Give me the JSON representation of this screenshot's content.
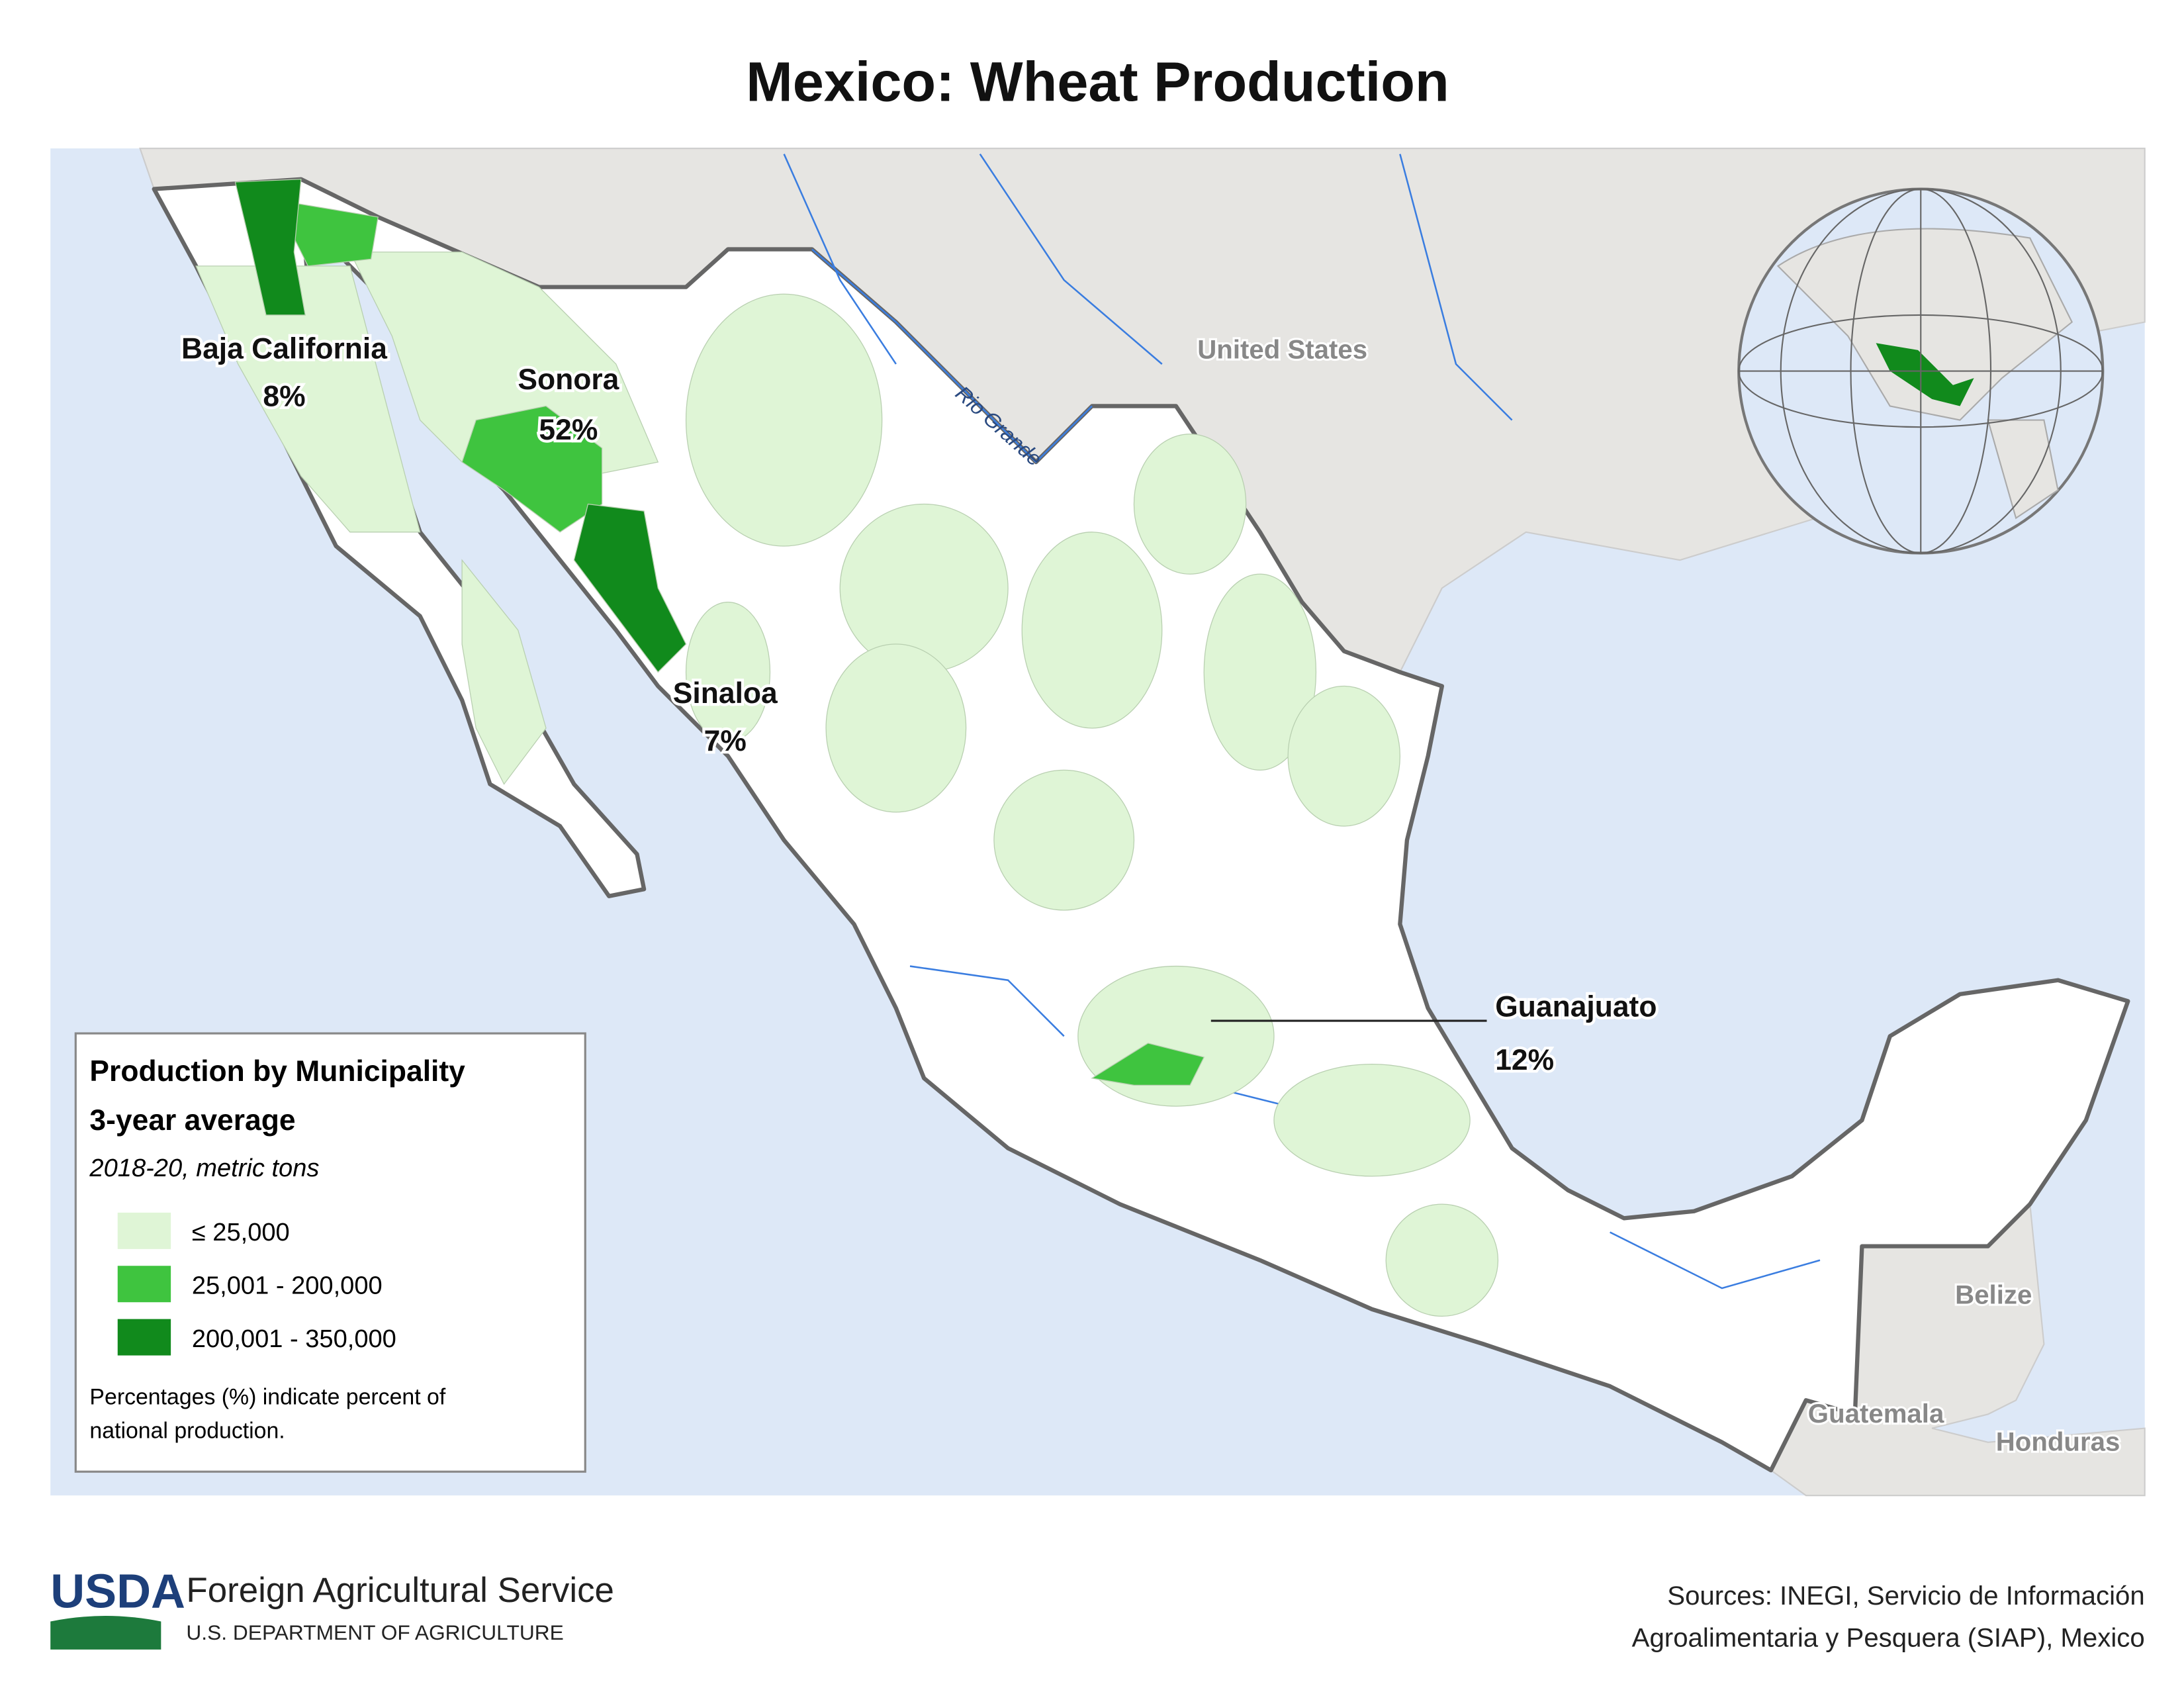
{
  "header": {
    "title": "Mexico: Wheat Production"
  },
  "map": {
    "countries": [
      "United States",
      "Belize",
      "Guatemala",
      "Honduras"
    ],
    "river": "Rio Grande",
    "regions": [
      {
        "name": "Baja California",
        "share": "8%"
      },
      {
        "name": "Sonora",
        "share": "52%"
      },
      {
        "name": "Sinaloa",
        "share": "7%"
      },
      {
        "name": "Guanajuato",
        "share": "12%"
      }
    ]
  },
  "legend": {
    "title": "Production by Municipality",
    "subtitle": "3-year average",
    "note": "2018-20, metric tons",
    "classes": [
      {
        "label": "≤ 25,000",
        "color": "#dff5d6"
      },
      {
        "label": "25,001 - 200,000",
        "color": "#3fc43f"
      },
      {
        "label": "200,001 - 350,000",
        "color": "#118a1c"
      }
    ],
    "footnote": [
      "Percentages (%) indicate percent of",
      "national production."
    ]
  },
  "footer": {
    "agency": "USDA",
    "service": "Foreign Agricultural Service",
    "department": "U.S. DEPARTMENT OF AGRICULTURE",
    "sources": [
      "Sources: INEGI, Servicio de Información",
      "Agroalimentaria y Pesquera (SIAP), Mexico"
    ]
  }
}
